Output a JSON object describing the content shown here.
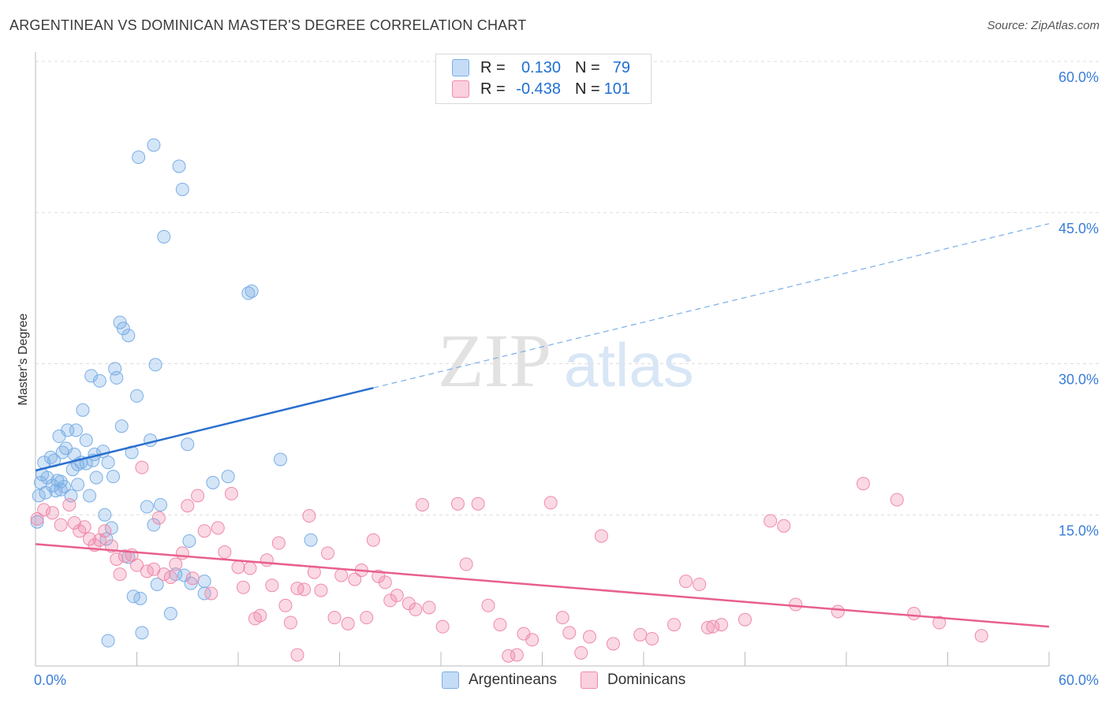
{
  "title": "ARGENTINEAN VS DOMINICAN MASTER'S DEGREE CORRELATION CHART",
  "source": "Source: ZipAtlas.com",
  "watermark": {
    "zip": "ZIP",
    "atlas": "atlas"
  },
  "legend_top": [
    {
      "r_label": "R =",
      "r_value": "0.130",
      "n_label": "N =",
      "n_value": "79",
      "color": "#7aaee6"
    },
    {
      "r_label": "R =",
      "r_value": "-0.438",
      "n_label": "N =",
      "n_value": "101",
      "color": "#f08aaa"
    }
  ],
  "legend_bottom": [
    {
      "label": "Argentineans",
      "color": "#7aaee6"
    },
    {
      "label": "Dominicans",
      "color": "#f08aaa"
    }
  ],
  "chart_data": {
    "type": "scatter",
    "title": "ARGENTINEAN VS DOMINICAN MASTER'S DEGREE CORRELATION CHART",
    "ylabel": "Master's Degree",
    "xlabel": "",
    "xlim": [
      0,
      60
    ],
    "ylim": [
      0,
      60
    ],
    "x_tick_labels": [
      {
        "value": 0,
        "label": "0.0%"
      },
      {
        "value": 60,
        "label": "60.0%"
      }
    ],
    "y_tick_labels": [
      {
        "value": 15,
        "label": "15.0%"
      },
      {
        "value": 30,
        "label": "30.0%"
      },
      {
        "value": 45,
        "label": "45.0%"
      },
      {
        "value": 60,
        "label": "60.0%"
      }
    ],
    "series": [
      {
        "name": "Argentineans",
        "color": "#7aaee6",
        "trend": {
          "x0": 0,
          "y0": 19.4,
          "x1": 20,
          "y1": 27.6,
          "dash_to_x": 60,
          "dash_to_y": 43.9
        },
        "points": [
          [
            0.1,
            14.3
          ],
          [
            0.2,
            16.9
          ],
          [
            0.3,
            18.2
          ],
          [
            0.4,
            19.0
          ],
          [
            0.5,
            20.2
          ],
          [
            0.6,
            17.2
          ],
          [
            0.7,
            18.7
          ],
          [
            0.9,
            20.7
          ],
          [
            1.0,
            17.9
          ],
          [
            1.1,
            20.4
          ],
          [
            1.2,
            17.4
          ],
          [
            1.3,
            18.4
          ],
          [
            1.4,
            22.8
          ],
          [
            1.5,
            18.3
          ],
          [
            1.6,
            21.2
          ],
          [
            1.7,
            17.8
          ],
          [
            1.8,
            21.6
          ],
          [
            1.9,
            23.4
          ],
          [
            2.1,
            16.9
          ],
          [
            2.2,
            19.5
          ],
          [
            2.3,
            21.0
          ],
          [
            2.4,
            23.4
          ],
          [
            2.5,
            18.0
          ],
          [
            2.7,
            20.2
          ],
          [
            2.8,
            25.4
          ],
          [
            3.0,
            20.1
          ],
          [
            3.2,
            16.9
          ],
          [
            3.3,
            28.8
          ],
          [
            3.4,
            20.4
          ],
          [
            3.6,
            18.7
          ],
          [
            3.8,
            28.3
          ],
          [
            4.0,
            21.3
          ],
          [
            4.1,
            15.0
          ],
          [
            4.3,
            20.2
          ],
          [
            4.5,
            13.7
          ],
          [
            4.6,
            18.8
          ],
          [
            4.7,
            29.5
          ],
          [
            4.8,
            28.6
          ],
          [
            5.0,
            34.1
          ],
          [
            5.1,
            23.8
          ],
          [
            5.2,
            33.5
          ],
          [
            5.5,
            32.8
          ],
          [
            5.7,
            21.2
          ],
          [
            5.8,
            6.9
          ],
          [
            6.0,
            26.8
          ],
          [
            6.1,
            50.5
          ],
          [
            6.2,
            6.7
          ],
          [
            6.3,
            3.3
          ],
          [
            6.6,
            15.8
          ],
          [
            6.8,
            22.4
          ],
          [
            7.0,
            51.7
          ],
          [
            7.0,
            14.0
          ],
          [
            7.1,
            29.9
          ],
          [
            7.2,
            8.1
          ],
          [
            7.4,
            16.0
          ],
          [
            7.6,
            42.6
          ],
          [
            8.0,
            5.2
          ],
          [
            8.3,
            9.1
          ],
          [
            8.5,
            49.6
          ],
          [
            8.7,
            47.3
          ],
          [
            8.8,
            9.0
          ],
          [
            9.0,
            22.0
          ],
          [
            9.1,
            12.4
          ],
          [
            9.2,
            8.2
          ],
          [
            10.0,
            7.2
          ],
          [
            10.0,
            8.4
          ],
          [
            10.5,
            18.2
          ],
          [
            11.4,
            18.8
          ],
          [
            12.6,
            37.0
          ],
          [
            12.8,
            37.2
          ],
          [
            1.5,
            17.5
          ],
          [
            2.5,
            20.0
          ],
          [
            3.0,
            22.4
          ],
          [
            3.5,
            21.0
          ],
          [
            4.2,
            12.6
          ],
          [
            5.5,
            10.8
          ],
          [
            14.5,
            20.5
          ],
          [
            16.3,
            12.5
          ],
          [
            4.3,
            2.5
          ]
        ]
      },
      {
        "name": "Dominicans",
        "color": "#f08aaa",
        "trend": {
          "x0": 0,
          "y0": 12.1,
          "x1": 60,
          "y1": 3.9
        },
        "points": [
          [
            0.1,
            14.6
          ],
          [
            0.5,
            15.5
          ],
          [
            1.0,
            15.2
          ],
          [
            1.5,
            14.0
          ],
          [
            2.0,
            16.0
          ],
          [
            2.3,
            14.2
          ],
          [
            2.6,
            13.4
          ],
          [
            2.9,
            13.8
          ],
          [
            3.2,
            12.6
          ],
          [
            3.5,
            12.0
          ],
          [
            3.8,
            12.5
          ],
          [
            4.1,
            13.4
          ],
          [
            4.5,
            11.9
          ],
          [
            4.8,
            10.6
          ],
          [
            5.0,
            9.1
          ],
          [
            5.3,
            10.9
          ],
          [
            5.7,
            11.0
          ],
          [
            6.0,
            10.0
          ],
          [
            6.3,
            19.7
          ],
          [
            6.6,
            9.4
          ],
          [
            7.0,
            9.6
          ],
          [
            7.3,
            14.7
          ],
          [
            7.6,
            9.1
          ],
          [
            8.0,
            8.8
          ],
          [
            8.3,
            10.1
          ],
          [
            8.7,
            11.2
          ],
          [
            9.0,
            15.9
          ],
          [
            9.3,
            8.7
          ],
          [
            9.6,
            16.9
          ],
          [
            10.0,
            13.4
          ],
          [
            10.4,
            7.2
          ],
          [
            10.8,
            13.7
          ],
          [
            11.2,
            11.3
          ],
          [
            11.6,
            17.1
          ],
          [
            12.0,
            9.8
          ],
          [
            12.3,
            7.8
          ],
          [
            12.7,
            9.7
          ],
          [
            13.0,
            4.7
          ],
          [
            13.3,
            5.0
          ],
          [
            13.7,
            10.5
          ],
          [
            14.0,
            8.0
          ],
          [
            14.4,
            12.2
          ],
          [
            14.8,
            6.0
          ],
          [
            15.1,
            4.3
          ],
          [
            15.5,
            7.7
          ],
          [
            15.9,
            7.6
          ],
          [
            16.2,
            14.9
          ],
          [
            16.5,
            9.3
          ],
          [
            16.9,
            7.5
          ],
          [
            17.3,
            11.2
          ],
          [
            17.7,
            4.8
          ],
          [
            18.1,
            9.0
          ],
          [
            18.5,
            4.2
          ],
          [
            18.9,
            8.6
          ],
          [
            19.3,
            9.5
          ],
          [
            19.6,
            4.8
          ],
          [
            20.0,
            12.5
          ],
          [
            20.3,
            8.9
          ],
          [
            20.7,
            8.3
          ],
          [
            21.0,
            6.5
          ],
          [
            21.4,
            7.0
          ],
          [
            22.1,
            6.2
          ],
          [
            22.5,
            5.6
          ],
          [
            23.3,
            5.8
          ],
          [
            24.1,
            3.9
          ],
          [
            25.0,
            16.1
          ],
          [
            25.5,
            10.1
          ],
          [
            26.2,
            16.1
          ],
          [
            26.8,
            6.0
          ],
          [
            27.5,
            4.1
          ],
          [
            28.0,
            1.0
          ],
          [
            28.9,
            3.2
          ],
          [
            29.4,
            2.6
          ],
          [
            30.5,
            16.2
          ],
          [
            31.2,
            4.8
          ],
          [
            31.6,
            3.3
          ],
          [
            32.3,
            1.3
          ],
          [
            32.8,
            2.9
          ],
          [
            33.5,
            12.9
          ],
          [
            34.2,
            2.2
          ],
          [
            36.5,
            2.7
          ],
          [
            37.8,
            4.1
          ],
          [
            38.5,
            8.4
          ],
          [
            39.3,
            8.1
          ],
          [
            39.8,
            3.8
          ],
          [
            40.6,
            4.1
          ],
          [
            42.0,
            4.6
          ],
          [
            43.5,
            14.4
          ],
          [
            44.3,
            13.9
          ],
          [
            45.0,
            6.1
          ],
          [
            47.5,
            5.4
          ],
          [
            49.0,
            18.1
          ],
          [
            51.0,
            16.5
          ],
          [
            52.0,
            5.2
          ],
          [
            53.5,
            4.3
          ],
          [
            56.0,
            3.0
          ],
          [
            28.5,
            1.1
          ],
          [
            40.1,
            3.9
          ],
          [
            22.9,
            16.0
          ],
          [
            15.5,
            1.1
          ],
          [
            35.8,
            3.1
          ]
        ]
      }
    ]
  }
}
